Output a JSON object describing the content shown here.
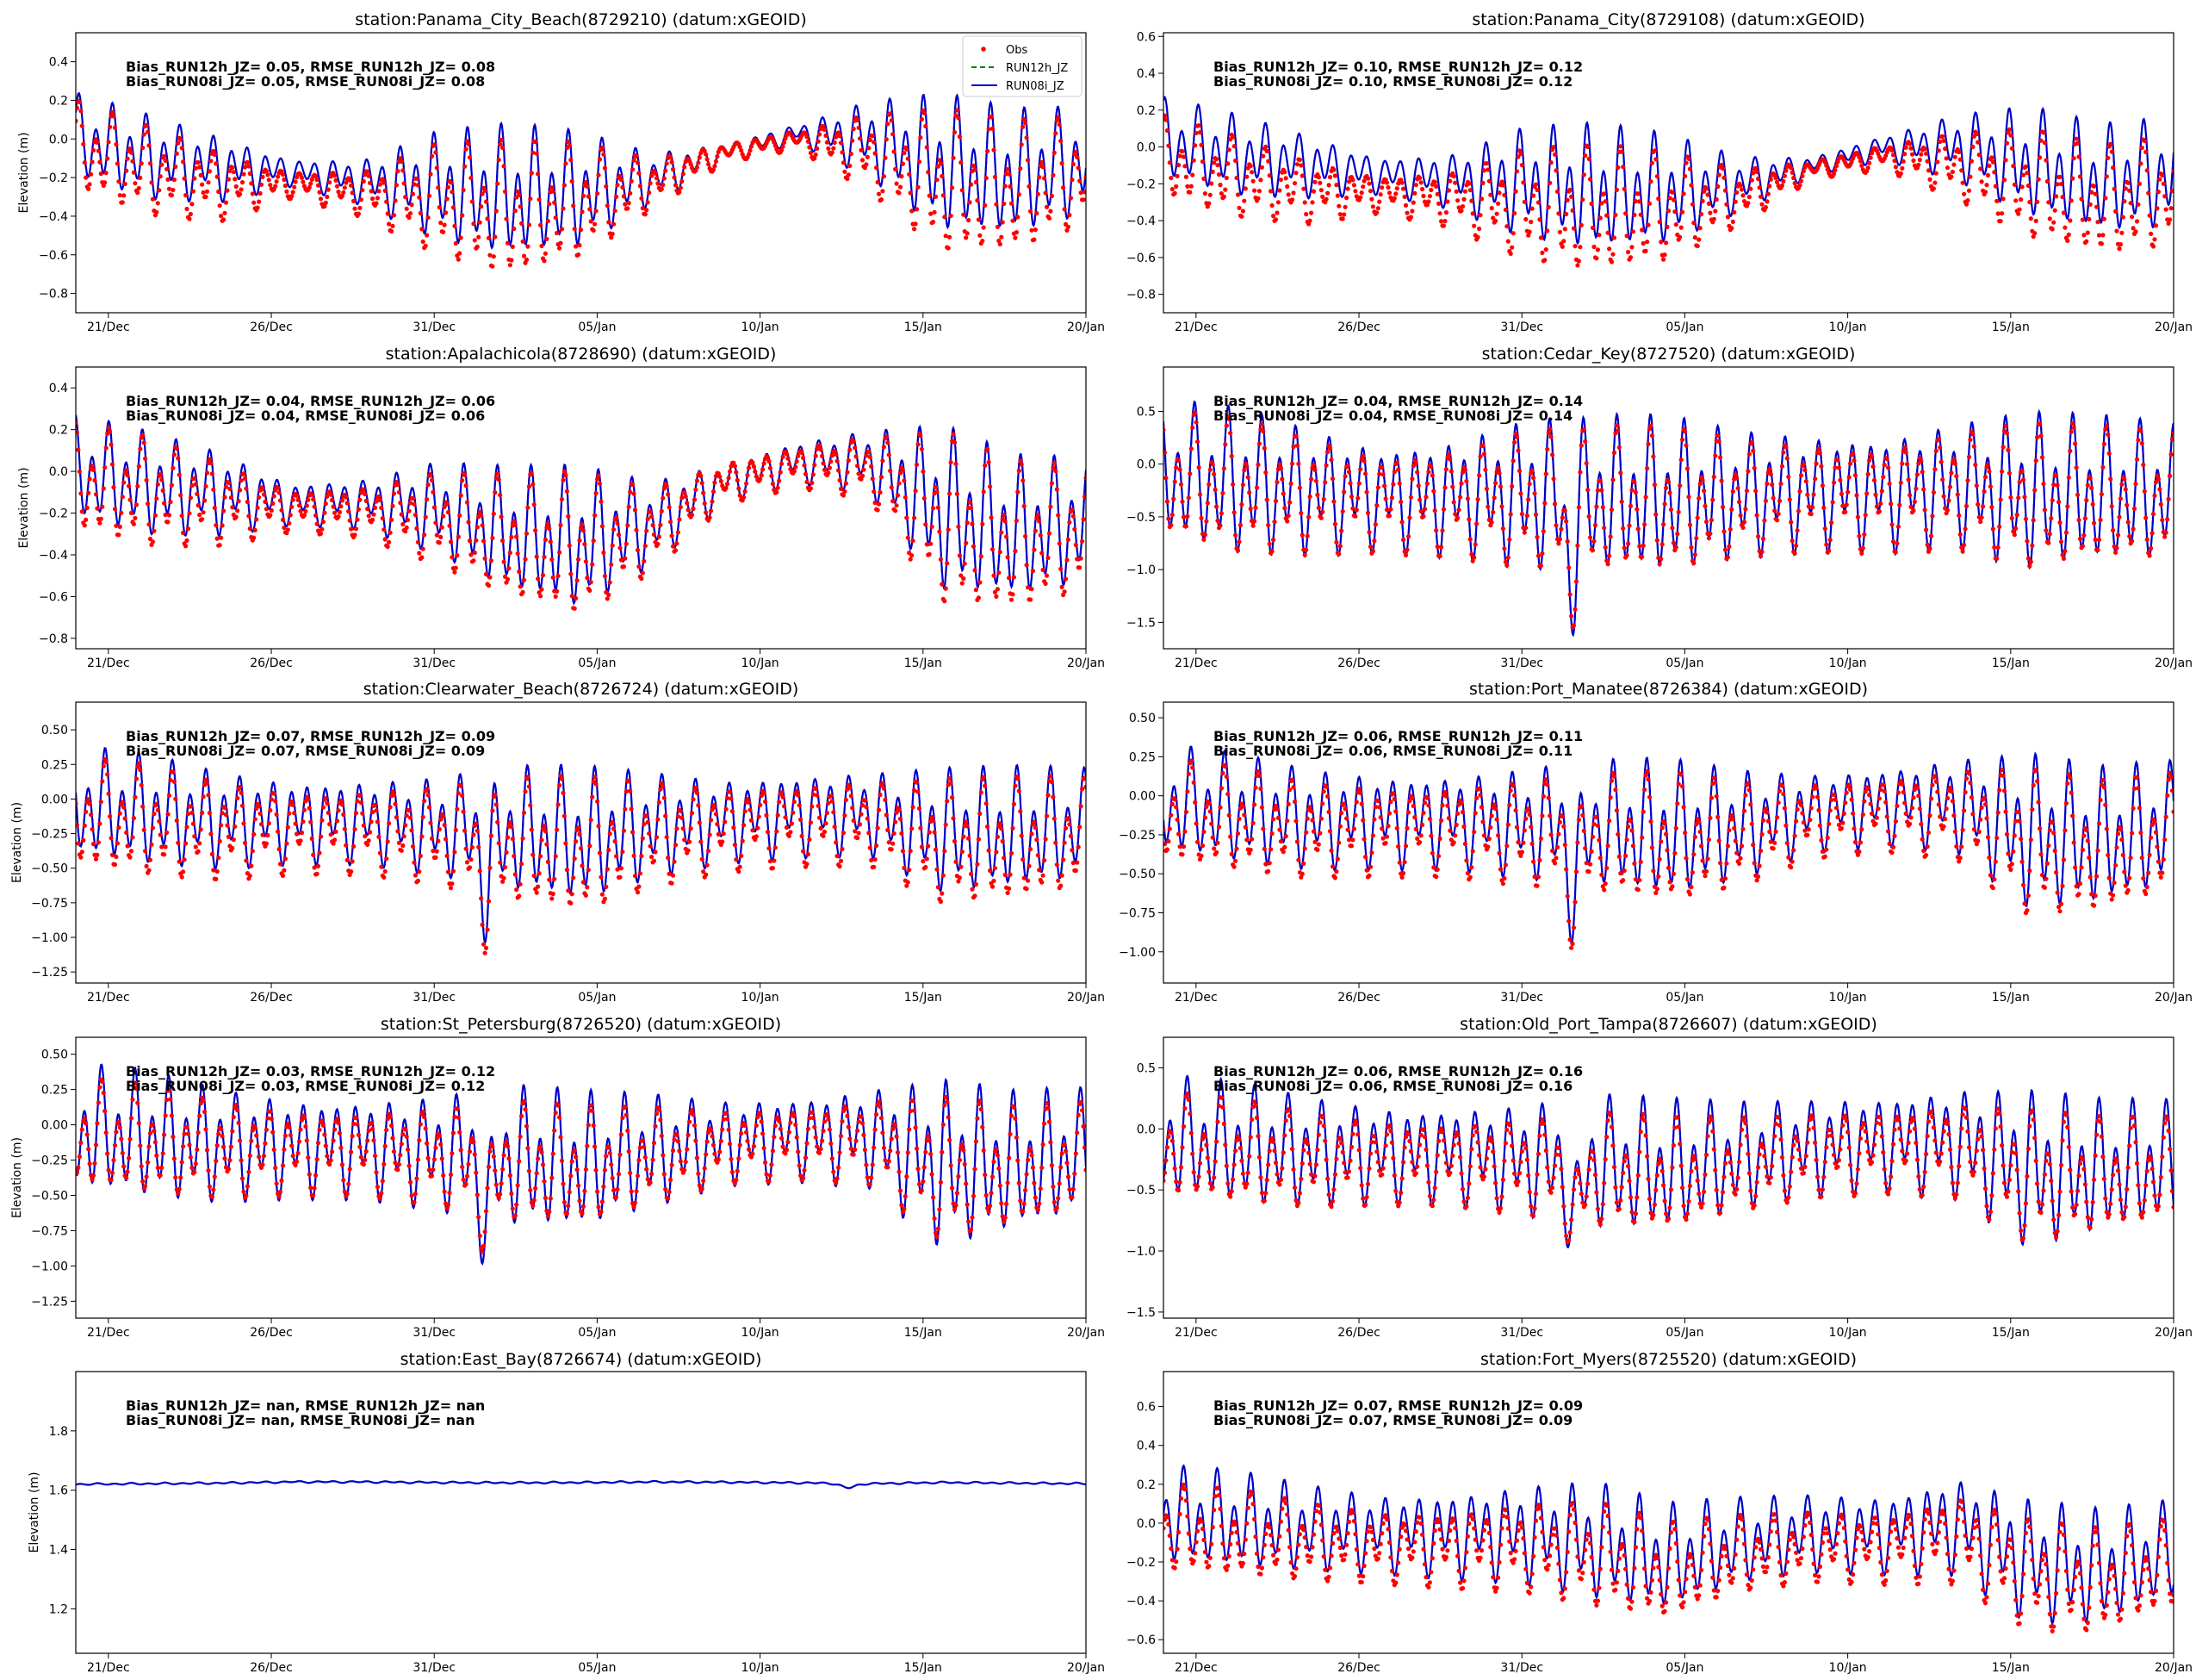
{
  "figure": {
    "x_tick_labels": [
      "21/Dec",
      "26/Dec",
      "31/Dec",
      "05/Jan",
      "10/Jan",
      "15/Jan",
      "20/Jan"
    ],
    "y_label": "Elevation (m)"
  },
  "legend": {
    "entries": [
      {
        "label": "Obs",
        "color": "#ff0000",
        "style": "dots"
      },
      {
        "label": "RUN12h_JZ",
        "color": "#008000",
        "style": "dashed"
      },
      {
        "label": "RUN08i_JZ",
        "color": "#0000cc",
        "style": "solid"
      }
    ]
  },
  "chart_data": [
    {
      "type": "line",
      "title": "station:Panama_City_Beach(8729210) (datum:xGEOID)",
      "ylabel": "Elevation (m)",
      "xlim_days": [
        0,
        31
      ],
      "x_ticks_days": [
        1,
        6,
        11,
        16,
        21,
        26,
        31
      ],
      "ylim": [
        -0.9,
        0.55
      ],
      "yticks": [
        0.4,
        0.2,
        0.0,
        -0.2,
        -0.4,
        -0.6,
        -0.8
      ],
      "ytick_labels": [
        "0.4",
        "0.2",
        "0.0",
        "−0.2",
        "−0.4",
        "−0.6",
        "−0.8"
      ],
      "stats": [
        "Bias_RUN12h_JZ=  0.05, RMSE_RUN12h_JZ=  0.08",
        "Bias_RUN08i_JZ=  0.05, RMSE_RUN08i_JZ=  0.08"
      ],
      "model_mean": [
        0.0,
        -0.1,
        -0.15,
        -0.17,
        -0.22,
        -0.25,
        -0.3,
        -0.28,
        -0.2,
        -0.07,
        0.03,
        0.0,
        -0.15,
        -0.2,
        -0.12
      ],
      "model_amp": [
        0.22,
        0.22,
        0.17,
        0.07,
        0.12,
        0.28,
        0.35,
        0.3,
        0.13,
        0.05,
        0.05,
        0.2,
        0.36,
        0.33,
        0.28
      ],
      "obs_offset": [
        -0.05,
        -0.07,
        -0.09,
        -0.06,
        -0.06,
        -0.07,
        -0.1,
        -0.06,
        -0.03,
        0.0,
        -0.03,
        -0.07,
        -0.1,
        -0.08,
        -0.05
      ],
      "obs_scale": [
        1.05,
        1.05,
        1.05,
        1.0,
        1.0,
        1.03,
        1.03,
        1.0,
        1.0,
        1.0,
        1.0,
        1.0,
        1.05,
        1.05,
        1.0
      ],
      "events": []
    },
    {
      "type": "line",
      "title": "station:Panama_City(8729108) (datum:xGEOID)",
      "ylabel": "",
      "xlim_days": [
        0,
        31
      ],
      "x_ticks_days": [
        1,
        6,
        11,
        16,
        21,
        26,
        31
      ],
      "ylim": [
        -0.9,
        0.62
      ],
      "yticks": [
        0.6,
        0.4,
        0.2,
        0.0,
        -0.2,
        -0.4,
        -0.6,
        -0.8
      ],
      "ytick_labels": [
        "0.6",
        "0.4",
        "0.2",
        "0.0",
        "−0.2",
        "−0.4",
        "−0.6",
        "−0.8"
      ],
      "stats": [
        "Bias_RUN12h_JZ=  0.10, RMSE_RUN12h_JZ=  0.12",
        "Bias_RUN08i_JZ=  0.10, RMSE_RUN08i_JZ=  0.12"
      ],
      "model_mean": [
        0.03,
        -0.05,
        -0.1,
        -0.15,
        -0.18,
        -0.2,
        -0.25,
        -0.25,
        -0.2,
        -0.1,
        0.0,
        0.0,
        -0.1,
        -0.2,
        -0.15
      ],
      "model_amp": [
        0.22,
        0.22,
        0.17,
        0.1,
        0.15,
        0.3,
        0.35,
        0.3,
        0.15,
        0.05,
        0.07,
        0.18,
        0.3,
        0.3,
        0.3
      ],
      "obs_offset": [
        -0.1,
        -0.12,
        -0.14,
        -0.1,
        -0.1,
        -0.12,
        -0.12,
        -0.1,
        -0.07,
        -0.02,
        -0.05,
        -0.1,
        -0.12,
        -0.12,
        -0.1
      ],
      "obs_scale": [
        1.0,
        1.0,
        1.0,
        1.0,
        1.0,
        1.0,
        1.0,
        1.0,
        1.0,
        1.0,
        1.0,
        1.0,
        1.0,
        1.0,
        1.0
      ],
      "events": []
    },
    {
      "type": "line",
      "title": "station:Apalachicola(8728690) (datum:xGEOID)",
      "ylabel": "Elevation (m)",
      "xlim_days": [
        0,
        31
      ],
      "x_ticks_days": [
        1,
        6,
        11,
        16,
        21,
        26,
        31
      ],
      "ylim": [
        -0.85,
        0.5
      ],
      "yticks": [
        0.4,
        0.2,
        0.0,
        -0.2,
        -0.4,
        -0.6,
        -0.8
      ],
      "ytick_labels": [
        "0.4",
        "0.2",
        "0.0",
        "−0.2",
        "−0.4",
        "−0.6",
        "−0.8"
      ],
      "stats": [
        "Bias_RUN12h_JZ=  0.04, RMSE_RUN12h_JZ=  0.06",
        "Bias_RUN08i_JZ=  0.04, RMSE_RUN08i_JZ=  0.06"
      ],
      "model_mean": [
        0.0,
        -0.07,
        -0.1,
        -0.15,
        -0.15,
        -0.18,
        -0.3,
        -0.35,
        -0.25,
        -0.05,
        0.05,
        0.05,
        -0.2,
        -0.3,
        -0.25
      ],
      "model_amp": [
        0.25,
        0.25,
        0.2,
        0.1,
        0.12,
        0.22,
        0.3,
        0.35,
        0.2,
        0.1,
        0.1,
        0.15,
        0.4,
        0.35,
        0.3
      ],
      "obs_offset": [
        -0.05,
        -0.04,
        -0.05,
        -0.03,
        -0.04,
        -0.05,
        -0.04,
        -0.03,
        -0.03,
        0.0,
        -0.02,
        -0.03,
        -0.05,
        -0.05,
        -0.04
      ],
      "obs_scale": [
        1.05,
        1.05,
        1.0,
        1.0,
        1.0,
        1.0,
        1.0,
        1.0,
        1.0,
        1.0,
        1.0,
        1.0,
        1.05,
        1.05,
        1.0
      ],
      "events": []
    },
    {
      "type": "line",
      "title": "station:Cedar_Key(8727520) (datum:xGEOID)",
      "ylabel": "",
      "xlim_days": [
        0,
        31
      ],
      "x_ticks_days": [
        1,
        6,
        11,
        16,
        21,
        26,
        31
      ],
      "ylim": [
        -1.75,
        0.92
      ],
      "yticks": [
        0.5,
        0.0,
        -0.5,
        -1.0,
        -1.5
      ],
      "ytick_labels": [
        "0.5",
        "0.0",
        "−0.5",
        "−1.0",
        "−1.5"
      ],
      "stats": [
        "Bias_RUN12h_JZ=  0.04, RMSE_RUN12h_JZ=  0.14",
        "Bias_RUN08i_JZ=  0.04, RMSE_RUN08i_JZ=  0.14"
      ],
      "model_mean": [
        -0.1,
        -0.2,
        -0.25,
        -0.3,
        -0.3,
        -0.3,
        -0.35,
        -0.35,
        -0.3,
        -0.25,
        -0.25,
        -0.2,
        -0.3,
        -0.3,
        -0.3
      ],
      "model_amp": [
        0.65,
        0.7,
        0.6,
        0.5,
        0.55,
        0.7,
        0.75,
        0.75,
        0.6,
        0.55,
        0.55,
        0.6,
        0.75,
        0.7,
        0.65
      ],
      "obs_offset": [
        -0.04,
        -0.04,
        -0.04,
        -0.04,
        -0.04,
        -0.04,
        -0.04,
        -0.04,
        -0.04,
        -0.04,
        -0.04,
        -0.04,
        -0.04,
        -0.04,
        -0.04
      ],
      "obs_scale": [
        0.92,
        0.92,
        0.92,
        0.92,
        0.92,
        0.92,
        0.92,
        0.92,
        0.92,
        0.92,
        0.92,
        0.92,
        0.92,
        0.92,
        0.92
      ],
      "events": [
        {
          "day": 12.5,
          "value": -0.75,
          "width_days": 0.2
        }
      ]
    },
    {
      "type": "line",
      "title": "station:Clearwater_Beach(8726724) (datum:xGEOID)",
      "ylabel": "Elevation (m)",
      "xlim_days": [
        0,
        31
      ],
      "x_ticks_days": [
        1,
        6,
        11,
        16,
        21,
        26,
        31
      ],
      "ylim": [
        -1.33,
        0.7
      ],
      "yticks": [
        0.5,
        0.25,
        0.0,
        -0.25,
        -0.5,
        -0.75,
        -1.0,
        -1.25
      ],
      "ytick_labels": [
        "0.50",
        "0.25",
        "0.00",
        "−0.25",
        "−0.50",
        "−0.75",
        "−1.00",
        "−1.25"
      ],
      "stats": [
        "Bias_RUN12h_JZ=  0.07, RMSE_RUN12h_JZ=  0.09",
        "Bias_RUN08i_JZ=  0.07, RMSE_RUN08i_JZ=  0.09"
      ],
      "model_mean": [
        -0.05,
        -0.1,
        -0.15,
        -0.15,
        -0.15,
        -0.2,
        -0.25,
        -0.3,
        -0.2,
        -0.15,
        -0.1,
        -0.1,
        -0.25,
        -0.25,
        -0.2
      ],
      "model_amp": [
        0.4,
        0.4,
        0.35,
        0.3,
        0.3,
        0.35,
        0.45,
        0.5,
        0.38,
        0.3,
        0.3,
        0.3,
        0.45,
        0.45,
        0.4
      ],
      "obs_offset": [
        -0.08,
        -0.08,
        -0.08,
        -0.07,
        -0.07,
        -0.07,
        -0.08,
        -0.08,
        -0.07,
        -0.06,
        -0.06,
        -0.07,
        -0.08,
        -0.08,
        -0.07
      ],
      "obs_scale": [
        1.0,
        1.0,
        1.0,
        1.0,
        1.0,
        1.0,
        1.0,
        1.0,
        1.0,
        1.0,
        1.0,
        1.0,
        1.0,
        1.0,
        1.0
      ],
      "events": [
        {
          "day": 12.6,
          "value": -0.45,
          "width_days": 0.2
        }
      ]
    },
    {
      "type": "line",
      "title": "station:Port_Manatee(8726384) (datum:xGEOID)",
      "ylabel": "",
      "xlim_days": [
        0,
        31
      ],
      "x_ticks_days": [
        1,
        6,
        11,
        16,
        21,
        26,
        31
      ],
      "ylim": [
        -1.2,
        0.6
      ],
      "yticks": [
        0.5,
        0.25,
        0.0,
        -0.25,
        -0.5,
        -0.75,
        -1.0
      ],
      "ytick_labels": [
        "0.50",
        "0.25",
        "0.00",
        "−0.25",
        "−0.50",
        "−0.75",
        "−1.00"
      ],
      "stats": [
        "Bias_RUN12h_JZ=  0.06, RMSE_RUN12h_JZ=  0.11",
        "Bias_RUN08i_JZ=  0.06, RMSE_RUN08i_JZ=  0.11"
      ],
      "model_mean": [
        -0.05,
        -0.1,
        -0.15,
        -0.15,
        -0.15,
        -0.18,
        -0.2,
        -0.25,
        -0.2,
        -0.1,
        -0.05,
        -0.05,
        -0.25,
        -0.3,
        -0.2
      ],
      "model_amp": [
        0.35,
        0.35,
        0.32,
        0.3,
        0.3,
        0.35,
        0.4,
        0.45,
        0.35,
        0.25,
        0.25,
        0.3,
        0.5,
        0.45,
        0.4
      ],
      "obs_offset": [
        -0.07,
        -0.07,
        -0.07,
        -0.06,
        -0.06,
        -0.06,
        -0.07,
        -0.06,
        -0.06,
        -0.05,
        -0.05,
        -0.06,
        -0.07,
        -0.07,
        -0.06
      ],
      "obs_scale": [
        0.95,
        0.95,
        0.95,
        0.95,
        0.95,
        0.95,
        0.95,
        0.95,
        0.95,
        0.95,
        0.95,
        0.95,
        0.95,
        0.95,
        0.95
      ],
      "events": [
        {
          "day": 12.6,
          "value": -0.5,
          "width_days": 0.2
        }
      ]
    },
    {
      "type": "line",
      "title": "station:St_Petersburg(8726520) (datum:xGEOID)",
      "ylabel": "Elevation (m)",
      "xlim_days": [
        0,
        31
      ],
      "x_ticks_days": [
        1,
        6,
        11,
        16,
        21,
        26,
        31
      ],
      "ylim": [
        -1.37,
        0.62
      ],
      "yticks": [
        0.5,
        0.25,
        0.0,
        -0.25,
        -0.5,
        -0.75,
        -1.0,
        -1.25
      ],
      "ytick_labels": [
        "0.50",
        "0.25",
        "0.00",
        "−0.25",
        "−0.50",
        "−0.75",
        "−1.00",
        "−1.25"
      ],
      "stats": [
        "Bias_RUN12h_JZ=  0.03, RMSE_RUN12h_JZ=  0.12",
        "Bias_RUN08i_JZ=  0.03, RMSE_RUN08i_JZ=  0.12"
      ],
      "model_mean": [
        -0.05,
        -0.1,
        -0.15,
        -0.15,
        -0.15,
        -0.2,
        -0.25,
        -0.3,
        -0.2,
        -0.12,
        -0.08,
        -0.08,
        -0.3,
        -0.3,
        -0.22
      ],
      "model_amp": [
        0.45,
        0.45,
        0.4,
        0.35,
        0.35,
        0.4,
        0.5,
        0.5,
        0.4,
        0.3,
        0.3,
        0.35,
        0.6,
        0.5,
        0.45
      ],
      "obs_offset": [
        -0.03,
        -0.03,
        -0.03,
        -0.03,
        -0.03,
        -0.03,
        -0.03,
        -0.03,
        -0.03,
        -0.03,
        -0.03,
        -0.03,
        -0.03,
        -0.03,
        -0.03
      ],
      "obs_scale": [
        0.85,
        0.85,
        0.85,
        0.85,
        0.85,
        0.85,
        0.85,
        0.85,
        0.85,
        0.85,
        0.85,
        0.85,
        0.85,
        0.85,
        0.85
      ],
      "events": [
        {
          "day": 12.6,
          "value": -0.55,
          "width_days": 0.2
        }
      ]
    },
    {
      "type": "line",
      "title": "station:Old_Port_Tampa(8726607) (datum:xGEOID)",
      "ylabel": "",
      "xlim_days": [
        0,
        31
      ],
      "x_ticks_days": [
        1,
        6,
        11,
        16,
        21,
        26,
        31
      ],
      "ylim": [
        -1.55,
        0.75
      ],
      "yticks": [
        0.5,
        0.0,
        -0.5,
        -1.0,
        -1.5
      ],
      "ytick_labels": [
        "0.5",
        "0.0",
        "−0.5",
        "−1.0",
        "−1.5"
      ],
      "stats": [
        "Bias_RUN12h_JZ=  0.06, RMSE_RUN12h_JZ=  0.16",
        "Bias_RUN08i_JZ=  0.06, RMSE_RUN08i_JZ=  0.16"
      ],
      "model_mean": [
        -0.1,
        -0.15,
        -0.2,
        -0.2,
        -0.2,
        -0.25,
        -0.3,
        -0.35,
        -0.25,
        -0.15,
        -0.1,
        -0.1,
        -0.35,
        -0.35,
        -0.3
      ],
      "model_amp": [
        0.5,
        0.5,
        0.45,
        0.4,
        0.4,
        0.45,
        0.55,
        0.55,
        0.45,
        0.4,
        0.4,
        0.45,
        0.65,
        0.55,
        0.5
      ],
      "obs_offset": [
        -0.06,
        -0.06,
        -0.06,
        -0.06,
        -0.06,
        -0.06,
        -0.06,
        -0.06,
        -0.06,
        -0.06,
        -0.06,
        -0.06,
        -0.06,
        -0.06,
        -0.06
      ],
      "obs_scale": [
        0.85,
        0.85,
        0.85,
        0.85,
        0.85,
        0.85,
        0.85,
        0.85,
        0.85,
        0.85,
        0.85,
        0.85,
        0.85,
        0.85,
        0.85
      ],
      "events": [
        {
          "day": 12.6,
          "value": -0.6,
          "width_days": 0.2
        }
      ]
    },
    {
      "type": "line",
      "title": "station:East_Bay(8726674) (datum:xGEOID)",
      "ylabel": "Elevation (m)",
      "xlim_days": [
        0,
        31
      ],
      "x_ticks_days": [
        1,
        6,
        11,
        16,
        21,
        26,
        31
      ],
      "ylim": [
        1.05,
        2.0
      ],
      "yticks": [
        1.8,
        1.6,
        1.4,
        1.2
      ],
      "ytick_labels": [
        "1.8",
        "1.6",
        "1.4",
        "1.2"
      ],
      "stats": [
        "Bias_RUN12h_JZ=   nan, RMSE_RUN12h_JZ=   nan",
        "Bias_RUN08i_JZ=   nan, RMSE_RUN08i_JZ=   nan"
      ],
      "model_mean": [
        1.62,
        1.622,
        1.624,
        1.628,
        1.628,
        1.626,
        1.625,
        1.626,
        1.628,
        1.627,
        1.625,
        1.622,
        1.626,
        1.624,
        1.622
      ],
      "model_amp": [
        0.003,
        0.003,
        0.003,
        0.003,
        0.003,
        0.003,
        0.003,
        0.003,
        0.003,
        0.003,
        0.003,
        0.003,
        0.003,
        0.003,
        0.003
      ],
      "obs_offset": [],
      "obs_scale": [],
      "events": [
        {
          "day": 23.7,
          "value": -0.015,
          "width_days": 0.3
        }
      ]
    },
    {
      "type": "line",
      "title": "station:Fort_Myers(8725520) (datum:xGEOID)",
      "ylabel": "",
      "xlim_days": [
        0,
        31
      ],
      "x_ticks_days": [
        1,
        6,
        11,
        16,
        21,
        26,
        31
      ],
      "ylim": [
        -0.67,
        0.78
      ],
      "yticks": [
        0.6,
        0.4,
        0.2,
        0.0,
        -0.2,
        -0.4,
        -0.6
      ],
      "ytick_labels": [
        "0.6",
        "0.4",
        "0.2",
        "0.0",
        "−0.2",
        "−0.4",
        "−0.6"
      ],
      "stats": [
        "Bias_RUN12h_JZ=  0.07, RMSE_RUN12h_JZ=  0.09",
        "Bias_RUN08i_JZ=  0.07, RMSE_RUN08i_JZ=  0.09"
      ],
      "model_mean": [
        0.03,
        0.0,
        -0.03,
        -0.05,
        -0.05,
        -0.05,
        -0.1,
        -0.2,
        -0.1,
        -0.05,
        -0.05,
        0.0,
        -0.2,
        -0.25,
        -0.15
      ],
      "model_amp": [
        0.25,
        0.25,
        0.22,
        0.2,
        0.22,
        0.25,
        0.3,
        0.28,
        0.22,
        0.2,
        0.2,
        0.25,
        0.32,
        0.3,
        0.25
      ],
      "obs_offset": [
        -0.07,
        -0.07,
        -0.07,
        -0.07,
        -0.07,
        -0.07,
        -0.07,
        -0.07,
        -0.07,
        -0.07,
        -0.07,
        -0.07,
        -0.07,
        -0.07,
        -0.07
      ],
      "obs_scale": [
        0.9,
        0.9,
        0.9,
        0.9,
        0.9,
        0.9,
        0.9,
        0.9,
        0.9,
        0.9,
        0.9,
        0.9,
        0.9,
        0.9,
        0.9
      ],
      "events": []
    }
  ]
}
